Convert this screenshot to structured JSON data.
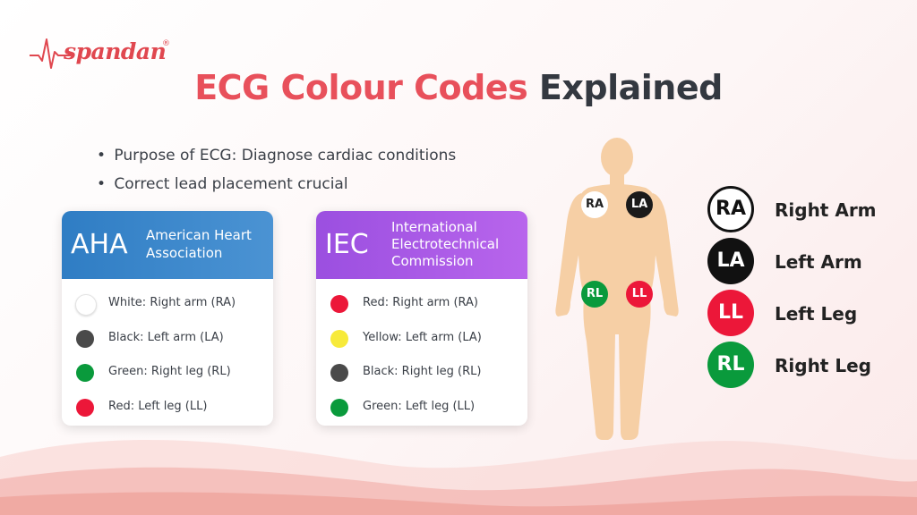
{
  "logo": {
    "text": "spandan",
    "reg": "®"
  },
  "title": {
    "accent": "ECG Colour Codes",
    "main": "Explained"
  },
  "bullets": [
    "Purpose of ECG: Diagnose cardiac conditions",
    "Correct lead placement crucial"
  ],
  "bullet_symbol": "•",
  "aha": {
    "abbr": "AHA",
    "full": "American Heart Association",
    "color": "#3b86cc",
    "items": [
      {
        "label": "White: Right arm (RA)",
        "color": "#ffffff"
      },
      {
        "label": "Black: Left arm (LA)",
        "color": "#4a4a4a"
      },
      {
        "label": "Green: Right leg (RL)",
        "color": "#0a9a3c"
      },
      {
        "label": "Red: Left leg (LL)",
        "color": "#ec1739"
      }
    ]
  },
  "iec": {
    "abbr": "IEC",
    "full": "International Electrotechnical Commission",
    "color": "#a95ae6",
    "items": [
      {
        "label": "Red: Right arm (RA)",
        "color": "#ec1739"
      },
      {
        "label": "Yellow: Left arm (LA)",
        "color": "#f7ea3a"
      },
      {
        "label": "Black: Right leg (RL)",
        "color": "#4a4a4a"
      },
      {
        "label": "Green: Left leg (LL)",
        "color": "#0a9a3c"
      }
    ]
  },
  "figure": {
    "badges": [
      {
        "text": "RA",
        "color": "#ffffff",
        "text_color": "#222222"
      },
      {
        "text": "LA",
        "color": "#1a1a1a",
        "text_color": "#ffffff"
      },
      {
        "text": "RL",
        "color": "#0a9a3c",
        "text_color": "#ffffff"
      },
      {
        "text": "LL",
        "color": "#ec1739",
        "text_color": "#ffffff"
      }
    ],
    "skin_color": "#f6cfa5"
  },
  "legend": [
    {
      "code": "RA",
      "label": "Right Arm",
      "color": "#ffffff",
      "text_color": "#111111"
    },
    {
      "code": "LA",
      "label": "Left Arm",
      "color": "#111111",
      "text_color": "#ffffff"
    },
    {
      "code": "LL",
      "label": "Left Leg",
      "color": "#ec1739",
      "text_color": "#ffffff"
    },
    {
      "code": "RL",
      "label": "Right Leg",
      "color": "#0a9a3c",
      "text_color": "#ffffff"
    }
  ]
}
